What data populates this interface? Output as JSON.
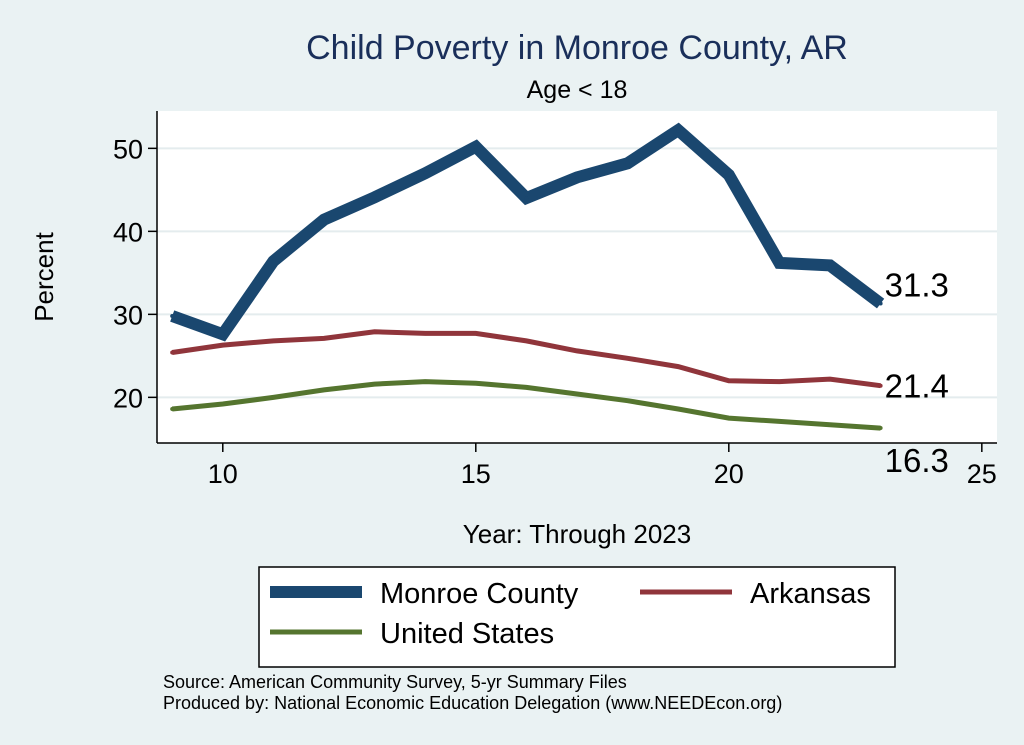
{
  "chart_data": {
    "type": "line",
    "title": "Child Poverty in Monroe County, AR",
    "subtitle": "Age < 18",
    "xlabel": "Year: Through 2023",
    "ylabel": "Percent",
    "xlim": [
      8.7,
      25.3
    ],
    "ylim": [
      14.5,
      54.5
    ],
    "xticks": [
      10,
      15,
      20,
      25
    ],
    "yticks": [
      20,
      30,
      40,
      50
    ],
    "grid": true,
    "series": [
      {
        "name": "Monroe County",
        "color": "#1a476f",
        "x": [
          9,
          10,
          11,
          12,
          13,
          14,
          15,
          16,
          17,
          18,
          19,
          20,
          21,
          22,
          23
        ],
        "values": [
          29.8,
          27.6,
          36.4,
          41.4,
          44.1,
          47.0,
          50.2,
          44.0,
          46.5,
          48.2,
          52.2,
          46.8,
          36.2,
          35.9,
          31.3
        ],
        "end_label": "31.3"
      },
      {
        "name": "Arkansas",
        "color": "#90353b",
        "x": [
          9,
          10,
          11,
          12,
          13,
          14,
          15,
          16,
          17,
          18,
          19,
          20,
          21,
          22,
          23
        ],
        "values": [
          25.4,
          26.3,
          26.8,
          27.1,
          27.9,
          27.7,
          27.7,
          26.8,
          25.6,
          24.7,
          23.7,
          22.0,
          21.9,
          22.2,
          21.4
        ],
        "end_label": "21.4"
      },
      {
        "name": "United States",
        "color": "#55752f",
        "x": [
          9,
          10,
          11,
          12,
          13,
          14,
          15,
          16,
          17,
          18,
          19,
          20,
          21,
          22,
          23
        ],
        "values": [
          18.6,
          19.2,
          20.0,
          20.9,
          21.6,
          21.9,
          21.7,
          21.2,
          20.4,
          19.6,
          18.6,
          17.5,
          17.1,
          16.7,
          16.3
        ],
        "end_label": "16.3"
      }
    ],
    "legend": {
      "position": "bottom",
      "entries": [
        "Monroe County",
        "Arkansas",
        "United States"
      ]
    }
  },
  "footer": {
    "source": "Source: American Community Survey, 5-yr Summary Files",
    "produced": "Produced by: National Economic Education Delegation (www.NEEDEcon.org)"
  }
}
